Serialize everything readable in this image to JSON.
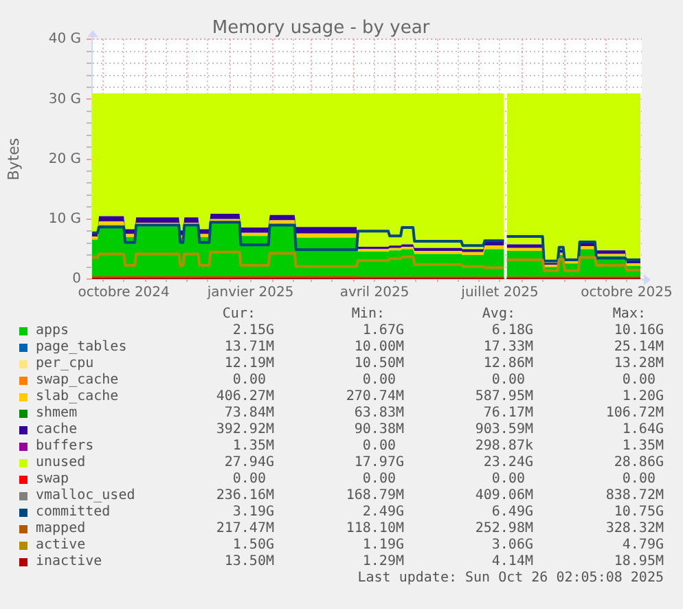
{
  "chart_data": {
    "type": "area",
    "title": "Memory usage - by year",
    "ylabel": "Bytes",
    "stacked": true,
    "grid": true,
    "legend": "bottom",
    "xlim": [
      "2024-09-23",
      "2025-10-27"
    ],
    "xticks": [
      {
        "value": "2024-10-01",
        "label": null
      },
      {
        "value": "2024-10-16",
        "label": "octobre 2024"
      },
      {
        "value": "2024-11-01",
        "label": null
      },
      {
        "value": "2024-11-16",
        "label": null
      },
      {
        "value": "2024-12-01",
        "label": null
      },
      {
        "value": "2024-12-16",
        "label": null
      },
      {
        "value": "2025-01-01",
        "label": null
      },
      {
        "value": "2025-01-16",
        "label": "janvier 2025"
      },
      {
        "value": "2025-02-01",
        "label": null
      },
      {
        "value": "2025-02-16",
        "label": null
      },
      {
        "value": "2025-03-01",
        "label": null
      },
      {
        "value": "2025-03-16",
        "label": null
      },
      {
        "value": "2025-04-01",
        "label": null
      },
      {
        "value": "2025-04-16",
        "label": "avril 2025"
      },
      {
        "value": "2025-05-01",
        "label": null
      },
      {
        "value": "2025-05-16",
        "label": null
      },
      {
        "value": "2025-06-01",
        "label": null
      },
      {
        "value": "2025-06-16",
        "label": null
      },
      {
        "value": "2025-07-01",
        "label": null
      },
      {
        "value": "2025-07-16",
        "label": "juillet 2025"
      },
      {
        "value": "2025-08-01",
        "label": null
      },
      {
        "value": "2025-08-16",
        "label": null
      },
      {
        "value": "2025-09-01",
        "label": null
      },
      {
        "value": "2025-09-16",
        "label": null
      },
      {
        "value": "2025-10-01",
        "label": null
      },
      {
        "value": "2025-10-16",
        "label": "octobre 2025"
      }
    ],
    "ylim": [
      0,
      40
    ],
    "yticks": [
      0,
      {
        "value": 2,
        "label": null
      },
      {
        "value": 4,
        "label": null
      },
      {
        "value": 6,
        "label": null
      },
      {
        "value": 8,
        "label": null
      },
      {
        "value": 10,
        "label": "10 G"
      },
      {
        "value": 12,
        "label": null
      },
      {
        "value": 14,
        "label": null
      },
      {
        "value": 16,
        "label": null
      },
      {
        "value": 18,
        "label": null
      },
      {
        "value": 20,
        "label": "20 G"
      },
      {
        "value": 22,
        "label": null
      },
      {
        "value": 24,
        "label": null
      },
      {
        "value": 26,
        "label": null
      },
      {
        "value": 28,
        "label": null
      },
      {
        "value": 30,
        "label": "30 G"
      },
      {
        "value": 32,
        "label": null
      },
      {
        "value": 34,
        "label": null
      },
      {
        "value": 36,
        "label": null
      },
      {
        "value": 38,
        "label": null
      },
      {
        "value": 40,
        "label": "40 G"
      }
    ],
    "x": [
      "2024-09-23",
      "2024-09-27",
      "2024-09-28",
      "2024-10-16",
      "2024-10-17",
      "2024-10-24",
      "2024-10-25",
      "2024-11-25",
      "2024-11-26",
      "2024-11-28",
      "2024-11-29",
      "2024-12-09",
      "2024-12-10",
      "2024-12-17",
      "2024-12-18",
      "2025-01-08",
      "2025-01-09",
      "2025-01-29",
      "2025-01-30",
      "2025-02-17",
      "2025-02-18",
      "2025-04-03",
      "2025-04-04",
      "2025-04-26",
      "2025-04-27",
      "2025-05-05",
      "2025-05-06",
      "2025-05-14",
      "2025-05-15",
      "2025-06-18",
      "2025-06-19",
      "2025-07-04",
      "2025-07-05",
      "2025-07-19",
      "2025-07-20",
      "2025-07-21",
      "2025-08-16",
      "2025-08-17",
      "2025-08-27",
      "2025-08-28",
      "2025-08-31",
      "2025-09-01",
      "2025-09-11",
      "2025-09-12",
      "2025-09-23",
      "2025-09-24",
      "2025-10-15",
      "2025-10-16",
      "2025-10-26"
    ],
    "series": [
      {
        "name": "apps",
        "color": "#00cc00",
        "values": [
          6.6,
          6.6,
          9.0,
          9.0,
          7.0,
          7.0,
          8.8,
          8.8,
          6.8,
          6.8,
          8.8,
          8.8,
          7.0,
          7.0,
          9.3,
          9.3,
          7.2,
          7.2,
          9.2,
          9.2,
          6.9,
          6.9,
          4.6,
          4.6,
          4.8,
          4.8,
          5.0,
          5.0,
          4.2,
          4.2,
          4.0,
          4.0,
          5.0,
          5.0,
          null,
          4.7,
          4.7,
          2.0,
          2.0,
          4.0,
          4.0,
          2.6,
          2.6,
          5.0,
          5.0,
          3.8,
          3.8,
          2.2,
          2.2
        ]
      },
      {
        "name": "page_tables",
        "color": "#0066b3",
        "values": [
          null,
          null,
          null,
          null,
          null,
          null,
          null,
          null,
          null,
          null,
          null,
          null,
          null,
          null,
          null,
          null,
          null,
          null,
          null,
          null,
          null,
          null,
          null,
          null,
          null,
          null,
          null,
          null,
          null,
          null,
          null,
          null,
          null,
          null,
          null,
          null,
          null,
          null,
          null,
          null,
          null,
          null,
          null,
          null,
          null,
          null,
          null,
          null,
          null
        ]
      },
      {
        "name": "per_cpu",
        "color": "#ffe680",
        "values": [
          null,
          null,
          null,
          null,
          null,
          null,
          null,
          null,
          null,
          null,
          null,
          null,
          null,
          null,
          null,
          null,
          null,
          null,
          null,
          null,
          null,
          null,
          null,
          null,
          null,
          null,
          null,
          null,
          null,
          null,
          null,
          null,
          null,
          null,
          null,
          null,
          null,
          null,
          null,
          null,
          null,
          null,
          null,
          null,
          null,
          null,
          null,
          null,
          null
        ]
      },
      {
        "name": "swap_cache",
        "color": "#ff8000",
        "values": [
          null,
          null,
          null,
          null,
          null,
          null,
          null,
          null,
          null,
          null,
          null,
          null,
          null,
          null,
          null,
          null,
          null,
          null,
          null,
          null,
          null,
          null,
          null,
          null,
          null,
          null,
          null,
          null,
          null,
          null,
          null,
          null,
          null,
          null,
          null,
          null,
          null,
          null,
          null,
          null,
          null,
          null,
          null,
          null,
          null,
          null,
          null,
          null,
          null
        ]
      },
      {
        "name": "slab_cache",
        "color": "#ffcc00",
        "values": [
          0.5,
          0.5,
          0.6,
          0.6,
          0.5,
          0.5,
          0.6,
          0.6,
          0.5,
          0.5,
          0.6,
          0.6,
          0.5,
          0.5,
          0.7,
          0.7,
          0.5,
          0.5,
          0.6,
          0.6,
          0.7,
          0.7,
          0.4,
          0.4,
          0.4,
          0.4,
          0.4,
          0.4,
          0.5,
          0.5,
          0.5,
          0.5,
          0.6,
          0.6,
          null,
          0.5,
          0.5,
          0.4,
          0.4,
          0.4,
          0.4,
          0.4,
          0.4,
          0.5,
          0.5,
          0.4,
          0.4,
          0.4,
          0.4
        ]
      },
      {
        "name": "shmem",
        "color": "#008f00",
        "values": [
          null,
          null,
          null,
          null,
          null,
          null,
          null,
          null,
          null,
          null,
          null,
          null,
          null,
          null,
          null,
          null,
          null,
          null,
          null,
          null,
          null,
          null,
          null,
          null,
          null,
          null,
          null,
          null,
          null,
          null,
          null,
          null,
          null,
          null,
          null,
          null,
          null,
          null,
          null,
          null,
          null,
          null,
          null,
          null,
          null,
          null,
          null,
          null,
          null
        ]
      },
      {
        "name": "cache",
        "color": "#330099",
        "values": [
          0.8,
          0.8,
          0.9,
          0.9,
          0.8,
          0.8,
          0.9,
          0.9,
          0.8,
          0.8,
          0.9,
          0.9,
          0.8,
          0.8,
          0.9,
          0.9,
          0.9,
          0.9,
          0.9,
          0.9,
          1.1,
          1.1,
          0.4,
          0.4,
          0.4,
          0.4,
          0.4,
          0.4,
          0.5,
          0.5,
          0.5,
          0.5,
          0.9,
          0.9,
          null,
          0.6,
          0.6,
          0.3,
          0.3,
          0.5,
          0.5,
          0.4,
          0.4,
          0.7,
          0.7,
          0.6,
          0.6,
          0.4,
          0.4
        ]
      },
      {
        "name": "buffers",
        "color": "#990099",
        "values": [
          null,
          null,
          null,
          null,
          null,
          null,
          null,
          null,
          null,
          null,
          null,
          null,
          null,
          null,
          null,
          null,
          null,
          null,
          null,
          null,
          null,
          null,
          null,
          null,
          null,
          null,
          null,
          null,
          null,
          null,
          null,
          null,
          null,
          null,
          null,
          null,
          null,
          null,
          null,
          null,
          null,
          null,
          null,
          null,
          null,
          null,
          null,
          null,
          null
        ]
      },
      {
        "name": "unused",
        "color": "#ccff00",
        "values": [
          23.1,
          23.1,
          20.5,
          20.5,
          22.7,
          22.7,
          20.7,
          20.7,
          22.9,
          22.9,
          20.7,
          20.7,
          22.7,
          22.7,
          20.1,
          20.1,
          22.4,
          22.4,
          20.3,
          20.3,
          22.3,
          22.3,
          25.6,
          25.6,
          25.4,
          25.4,
          25.2,
          25.2,
          25.8,
          25.8,
          26.0,
          26.0,
          24.5,
          24.5,
          null,
          25.2,
          25.2,
          28.3,
          28.3,
          26.1,
          26.1,
          27.6,
          27.6,
          24.8,
          24.8,
          26.2,
          26.2,
          28.0,
          28.0
        ]
      },
      {
        "name": "swap",
        "color": "#ff0000",
        "values": [
          null,
          null,
          null,
          null,
          null,
          null,
          null,
          null,
          null,
          null,
          null,
          null,
          null,
          null,
          null,
          null,
          null,
          null,
          null,
          null,
          null,
          null,
          null,
          null,
          null,
          null,
          null,
          null,
          null,
          null,
          null,
          null,
          null,
          null,
          null,
          null,
          null,
          null,
          null,
          null,
          null,
          null,
          null,
          null,
          null,
          null,
          null,
          null,
          null
        ]
      },
      {
        "name": "vmalloc_used",
        "color": "#808080",
        "type": "line",
        "values": [
          null,
          null,
          null,
          null,
          null,
          null,
          null,
          null,
          null,
          null,
          null,
          null,
          null,
          null,
          null,
          null,
          null,
          null,
          null,
          null,
          null,
          null,
          null,
          null,
          null,
          null,
          null,
          null,
          null,
          null,
          null,
          null,
          null,
          null,
          null,
          null,
          null,
          null,
          null,
          null,
          null,
          null,
          null,
          null,
          null,
          null,
          null,
          null,
          null
        ]
      },
      {
        "name": "committed",
        "color": "#00487d",
        "type": "line",
        "values": [
          7.7,
          7.7,
          8.7,
          8.7,
          6.1,
          6.1,
          9.0,
          9.0,
          6.1,
          6.1,
          9.0,
          9.0,
          6.1,
          6.1,
          9.5,
          9.5,
          5.7,
          5.7,
          9.0,
          9.0,
          4.9,
          4.9,
          8.0,
          8.0,
          7.2,
          7.2,
          8.6,
          8.6,
          6.3,
          6.3,
          5.6,
          5.6,
          6.4,
          6.4,
          null,
          7.1,
          7.1,
          3.0,
          3.0,
          5.3,
          5.3,
          3.2,
          3.2,
          6.2,
          6.2,
          3.5,
          3.5,
          3.2,
          3.2
        ]
      },
      {
        "name": "mapped",
        "color": "#b35a00",
        "type": "line",
        "values": [
          0.3,
          0.3,
          0.3,
          0.3,
          0.3,
          0.3,
          0.3,
          0.3,
          0.3,
          0.3,
          0.3,
          0.3,
          0.3,
          0.3,
          0.3,
          0.3,
          0.3,
          0.3,
          0.3,
          0.3,
          0.3,
          0.3,
          0.2,
          0.2,
          0.2,
          0.2,
          0.2,
          0.2,
          0.2,
          0.2,
          0.2,
          0.2,
          0.2,
          0.2,
          null,
          0.2,
          0.2,
          0.2,
          0.2,
          0.2,
          0.2,
          0.2,
          0.2,
          0.2,
          0.2,
          0.2,
          0.2,
          0.2,
          0.2
        ]
      },
      {
        "name": "active",
        "color": "#b38f00",
        "type": "line",
        "values": [
          3.6,
          3.6,
          4.2,
          4.2,
          2.3,
          2.3,
          4.2,
          4.2,
          2.3,
          2.3,
          4.2,
          4.2,
          2.3,
          2.3,
          4.5,
          4.5,
          2.3,
          2.3,
          4.3,
          4.3,
          2.1,
          2.1,
          3.1,
          3.1,
          3.4,
          3.4,
          3.7,
          3.7,
          2.4,
          2.4,
          2.1,
          2.1,
          1.9,
          1.9,
          null,
          3.2,
          3.2,
          1.4,
          1.4,
          3.3,
          3.3,
          1.4,
          1.4,
          3.6,
          3.6,
          2.3,
          2.3,
          1.5,
          1.5
        ]
      },
      {
        "name": "inactive",
        "color": "#b30000",
        "type": "line",
        "values": [
          0,
          0,
          0,
          0,
          0,
          0,
          0,
          0,
          0,
          0,
          0,
          0,
          0,
          0,
          0,
          0,
          0,
          0,
          0,
          0,
          0,
          0,
          0,
          0,
          0,
          0,
          0,
          0,
          0,
          0,
          0,
          0,
          0,
          0,
          null,
          0,
          0,
          0,
          0,
          0,
          0,
          0,
          0,
          0,
          0,
          0,
          0,
          0,
          0
        ]
      }
    ],
    "annotations": [
      "Cur:",
      "Min:",
      "Avg:",
      "Max:",
      "2.15G",
      "1.67G",
      "6.18G",
      "10.16G",
      "13.71M",
      "10.00M",
      "17.33M",
      "25.14M",
      "12.19M",
      "10.50M",
      "12.86M",
      "13.28M",
      "0.00",
      "0.00",
      "0.00",
      "0.00",
      "406.27M",
      "270.74M",
      "587.95M",
      "1.20G",
      "73.84M",
      "63.83M",
      "76.17M",
      "106.72M",
      "392.92M",
      "90.38M",
      "903.59M",
      "1.64G",
      "1.35M",
      "0.00",
      "298.87k",
      "1.35M",
      "27.94G",
      "17.97G",
      "23.24G",
      "28.86G",
      "0.00",
      "0.00",
      "0.00",
      "0.00",
      "236.16M",
      "168.79M",
      "409.06M",
      "838.72M",
      "3.19G",
      "2.49G",
      "6.49G",
      "10.75G",
      "217.47M",
      "118.10M",
      "252.98M",
      "328.32M",
      "1.50G",
      "1.19G",
      "3.06G",
      "4.79G",
      "13.50M",
      "1.29M",
      "4.14M",
      "18.95M",
      "Last update: Sun Oct 26 02:05:08 2025"
    ]
  }
}
